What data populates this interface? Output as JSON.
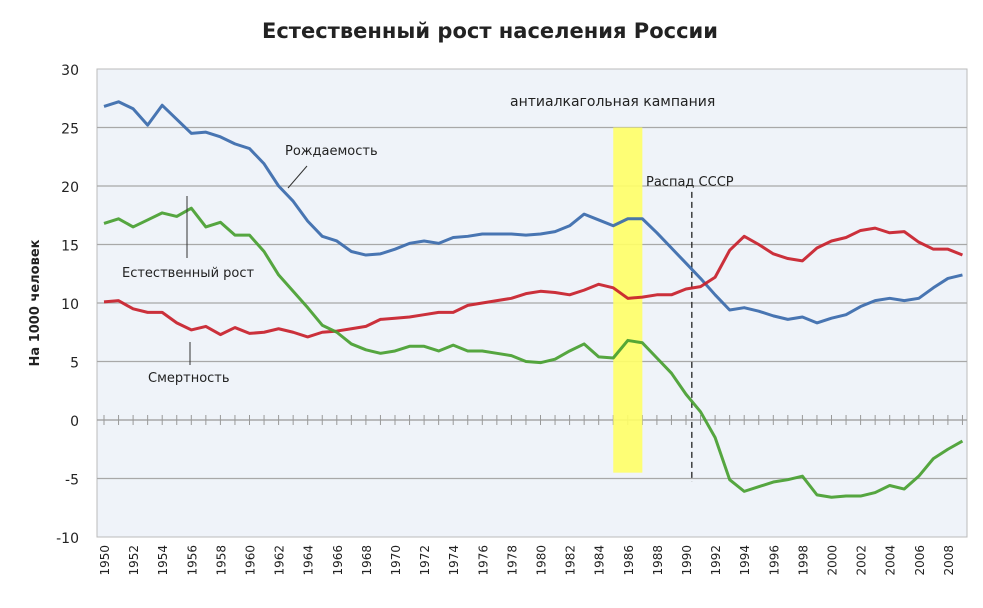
{
  "chart_data": {
    "type": "line",
    "title": "Естественный рост населения России",
    "xlabel": "",
    "ylabel": "На 1000 человек",
    "ylim": [
      -10,
      30
    ],
    "yticks": [
      -10,
      -5,
      0,
      5,
      10,
      15,
      20,
      25,
      30
    ],
    "xlim": [
      1950,
      2009
    ],
    "xticks": [
      1950,
      1952,
      1954,
      1956,
      1958,
      1960,
      1962,
      1964,
      1966,
      1968,
      1970,
      1972,
      1974,
      1976,
      1978,
      1980,
      1982,
      1984,
      1986,
      1988,
      1990,
      1992,
      1994,
      1996,
      1998,
      2000,
      2002,
      2004,
      2006,
      2008
    ],
    "grid": true,
    "x": [
      1950,
      1951,
      1952,
      1953,
      1954,
      1955,
      1956,
      1957,
      1958,
      1959,
      1960,
      1961,
      1962,
      1963,
      1964,
      1965,
      1966,
      1967,
      1968,
      1969,
      1970,
      1971,
      1972,
      1973,
      1974,
      1975,
      1976,
      1977,
      1978,
      1979,
      1980,
      1981,
      1982,
      1983,
      1984,
      1985,
      1986,
      1987,
      1988,
      1989,
      1990,
      1991,
      1992,
      1993,
      1994,
      1995,
      1996,
      1997,
      1998,
      1999,
      2000,
      2001,
      2002,
      2003,
      2004,
      2005,
      2006,
      2007,
      2008,
      2009
    ],
    "series": [
      {
        "name": "Рождаемость",
        "color": "#3a6aab",
        "values": [
          26.8,
          27.2,
          26.6,
          25.2,
          26.9,
          25.7,
          24.5,
          24.6,
          24.2,
          23.6,
          23.2,
          21.9,
          20.0,
          18.7,
          17.0,
          15.7,
          15.3,
          14.4,
          14.1,
          14.2,
          14.6,
          15.1,
          15.3,
          15.1,
          15.6,
          15.7,
          15.9,
          15.9,
          15.9,
          15.8,
          15.9,
          16.1,
          16.6,
          17.6,
          17.1,
          16.6,
          17.2,
          17.2,
          16.0,
          14.7,
          13.4,
          12.1,
          10.7,
          9.4,
          9.6,
          9.3,
          8.9,
          8.6,
          8.8,
          8.3,
          8.7,
          9.0,
          9.7,
          10.2,
          10.4,
          10.2,
          10.4,
          11.3,
          12.1,
          12.4
        ]
      },
      {
        "name": "Смертность",
        "color": "#c8202a",
        "values": [
          10.1,
          10.2,
          9.5,
          9.2,
          9.2,
          8.3,
          7.7,
          8.0,
          7.3,
          7.9,
          7.4,
          7.5,
          7.8,
          7.5,
          7.1,
          7.5,
          7.6,
          7.8,
          8.0,
          8.6,
          8.7,
          8.8,
          9.0,
          9.2,
          9.2,
          9.8,
          10.0,
          10.2,
          10.4,
          10.8,
          11.0,
          10.9,
          10.7,
          11.1,
          11.6,
          11.3,
          10.4,
          10.5,
          10.7,
          10.7,
          11.2,
          11.4,
          12.2,
          14.5,
          15.7,
          15.0,
          14.2,
          13.8,
          13.6,
          14.7,
          15.3,
          15.6,
          16.2,
          16.4,
          16.0,
          16.1,
          15.2,
          14.6,
          14.6,
          14.1
        ]
      },
      {
        "name": "Естественный рост",
        "color": "#48a030",
        "values": [
          16.8,
          17.2,
          16.5,
          17.1,
          17.7,
          17.4,
          18.1,
          16.5,
          16.9,
          15.8,
          15.8,
          14.4,
          12.4,
          11.0,
          9.6,
          8.1,
          7.5,
          6.5,
          6.0,
          5.7,
          5.9,
          6.3,
          6.3,
          5.9,
          6.4,
          5.9,
          5.9,
          5.7,
          5.5,
          5.0,
          4.9,
          5.2,
          5.9,
          6.5,
          5.4,
          5.3,
          6.8,
          6.6,
          5.3,
          4.0,
          2.2,
          0.7,
          -1.5,
          -5.1,
          -6.1,
          -5.7,
          -5.3,
          -5.1,
          -4.8,
          -6.4,
          -6.6,
          -6.5,
          -6.5,
          -6.2,
          -5.6,
          -5.9,
          -4.8,
          -3.3,
          -2.5,
          -1.8
        ]
      }
    ],
    "annotations": {
      "campaign": {
        "text": "антиалкагольная кампания",
        "from": 1985,
        "to": 1987,
        "ymin": -4.5,
        "ymax": 25,
        "color": "#ffff66"
      },
      "ussr": {
        "text": "Распад СССР",
        "x": 1990.4,
        "ymin": -5.3,
        "ymax": 19.5
      }
    }
  }
}
